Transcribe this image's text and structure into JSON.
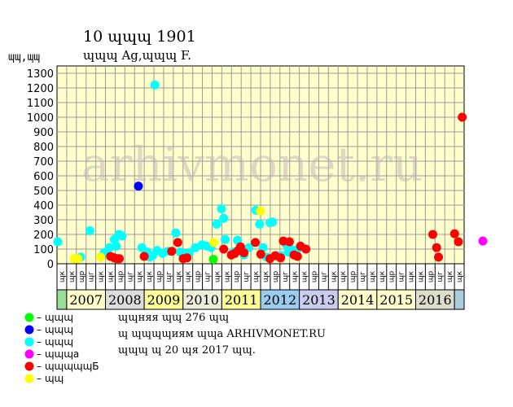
{
  "chart_data": {
    "type": "scatter",
    "title": "10 ɰɰɰ 1901",
    "subtitle": "ɰɰɰ Ag,ɰɰɰ F.",
    "ylabel": "ɰɰ,ɰɰ",
    "ylim": [
      0,
      1350
    ],
    "yticks": [
      0,
      100,
      200,
      300,
      400,
      500,
      600,
      700,
      800,
      900,
      1000,
      1100,
      1200,
      1300
    ],
    "grid": true,
    "watermark": "arhivmonet.ru",
    "years": [
      "",
      "2007",
      "2008",
      "2009",
      "2010",
      "2011",
      "2012",
      "2013",
      "2014",
      "2015",
      "2016",
      ""
    ],
    "year_colors": [
      "#99dd99",
      "#ffffcc",
      "#dddddd",
      "#ffff99",
      "#eeeedd",
      "#ffff99",
      "#99ccee",
      "#ccccee",
      "#ffffcc",
      "#ffffcc",
      "#ddddcc",
      "#aaccdd"
    ],
    "quarter_labels": [
      "ɰк",
      "ɰк",
      "ɰр",
      "ɰг",
      "ɰк",
      "ɰк",
      "ɰр",
      "ɰг",
      "ɰк",
      "ɰк",
      "ɰр",
      "ɰг",
      "ɰк",
      "ɰк",
      "ɰр",
      "ɰг",
      "ɰк",
      "ɰк",
      "ɰр",
      "ɰг",
      "ɰк",
      "ɰк",
      "ɰр",
      "ɰг",
      "ɰк",
      "ɰк",
      "ɰр",
      "ɰг",
      "ɰк",
      "ɰк",
      "ɰр",
      "ɰг",
      "ɰк",
      "ɰк",
      "ɰр",
      "ɰг",
      "ɰк",
      "ɰк",
      "ɰр",
      "ɰг",
      "ɰк",
      "ɰк"
    ],
    "series": [
      {
        "name": "ɰɰɰ",
        "color": "#00ff00",
        "points": [
          [
            40.9,
            30
          ]
        ]
      },
      {
        "name": "ɰɰɰ",
        "color": "#0000ff",
        "points": [
          [
            21.3,
            530
          ]
        ]
      },
      {
        "name": "ɰɰɰ",
        "color": "#00ffff",
        "points": [
          [
            0.2,
            150
          ],
          [
            6.2,
            45
          ],
          [
            8.6,
            225
          ],
          [
            12.3,
            75
          ],
          [
            13.7,
            110
          ],
          [
            15.0,
            165
          ],
          [
            15.5,
            120
          ],
          [
            16.2,
            200
          ],
          [
            17.0,
            190
          ],
          [
            22.2,
            110
          ],
          [
            23.5,
            80
          ],
          [
            24.2,
            45
          ],
          [
            25.0,
            55
          ],
          [
            25.6,
            1220
          ],
          [
            26.2,
            90
          ],
          [
            27.6,
            70
          ],
          [
            29.0,
            85
          ],
          [
            31.1,
            210
          ],
          [
            32.2,
            80
          ],
          [
            33.0,
            70
          ],
          [
            34.6,
            75
          ],
          [
            36.2,
            110
          ],
          [
            38.0,
            130
          ],
          [
            39.1,
            120
          ],
          [
            40.3,
            110
          ],
          [
            41.8,
            270
          ],
          [
            43.0,
            375
          ],
          [
            43.6,
            310
          ],
          [
            44.0,
            165
          ],
          [
            46.2,
            80
          ],
          [
            47.2,
            160
          ],
          [
            48.9,
            60
          ],
          [
            50.2,
            110
          ],
          [
            52.0,
            365
          ],
          [
            53.0,
            270
          ],
          [
            53.9,
            110
          ],
          [
            54.8,
            45
          ],
          [
            55.7,
            280
          ],
          [
            56.4,
            285
          ],
          [
            58.5,
            55
          ],
          [
            60.0,
            130
          ],
          [
            60.5,
            80
          ],
          [
            61.1,
            100
          ],
          [
            62.8,
            95
          ]
        ]
      },
      {
        "name": "ɰɰɰа",
        "color": "#ff00ff",
        "points": [
          [
            111.4,
            155
          ]
        ]
      },
      {
        "name": "ɰɰɰɰɰБ",
        "color": "#ff0000",
        "points": [
          [
            14.0,
            50
          ],
          [
            15.0,
            40
          ],
          [
            15.6,
            35
          ],
          [
            16.3,
            35
          ],
          [
            22.8,
            50
          ],
          [
            30.0,
            85
          ],
          [
            31.6,
            145
          ],
          [
            33.0,
            35
          ],
          [
            34.0,
            40
          ],
          [
            43.6,
            100
          ],
          [
            45.6,
            60
          ],
          [
            46.5,
            70
          ],
          [
            47.4,
            90
          ],
          [
            48.0,
            115
          ],
          [
            48.9,
            75
          ],
          [
            51.9,
            145
          ],
          [
            53.3,
            65
          ],
          [
            55.7,
            35
          ],
          [
            57.1,
            55
          ],
          [
            58.5,
            40
          ],
          [
            59.2,
            155
          ],
          [
            60.8,
            150
          ],
          [
            62.0,
            60
          ],
          [
            62.9,
            50
          ],
          [
            63.7,
            120
          ],
          [
            65.1,
            100
          ],
          [
            98.3,
            200
          ],
          [
            99.3,
            110
          ],
          [
            99.8,
            45
          ],
          [
            104.0,
            205
          ],
          [
            105.0,
            150
          ],
          [
            106.0,
            1000
          ]
        ]
      },
      {
        "name": "ɰɰ",
        "color": "#ffff00",
        "points": [
          [
            4.5,
            35
          ],
          [
            5.5,
            35
          ],
          [
            11.4,
            45
          ],
          [
            41.0,
            145
          ],
          [
            53.2,
            360
          ]
        ]
      }
    ],
    "x_range": [
      0,
      106.5
    ]
  },
  "legend": [
    {
      "label": "ɰɰɰ",
      "color": "#00ff00"
    },
    {
      "label": "ɰɰɰ",
      "color": "#0000ff"
    },
    {
      "label": "ɰɰɰ",
      "color": "#00ffff"
    },
    {
      "label": "ɰɰɰа",
      "color": "#ff00ff"
    },
    {
      "label": "ɰɰɰɰɰБ",
      "color": "#ff0000"
    },
    {
      "label": "ɰɰ",
      "color": "#ffff00"
    }
  ],
  "info": {
    "line1": "ɰɰняя ɰɰ 276 ɰɰ",
    "line2": "ɰ ɰɰɰɰиям ɰɰа ARHIVMONET.RU",
    "line3": "ɰɰɰ ɰ 20 ɰя 2017 ɰɰ."
  }
}
